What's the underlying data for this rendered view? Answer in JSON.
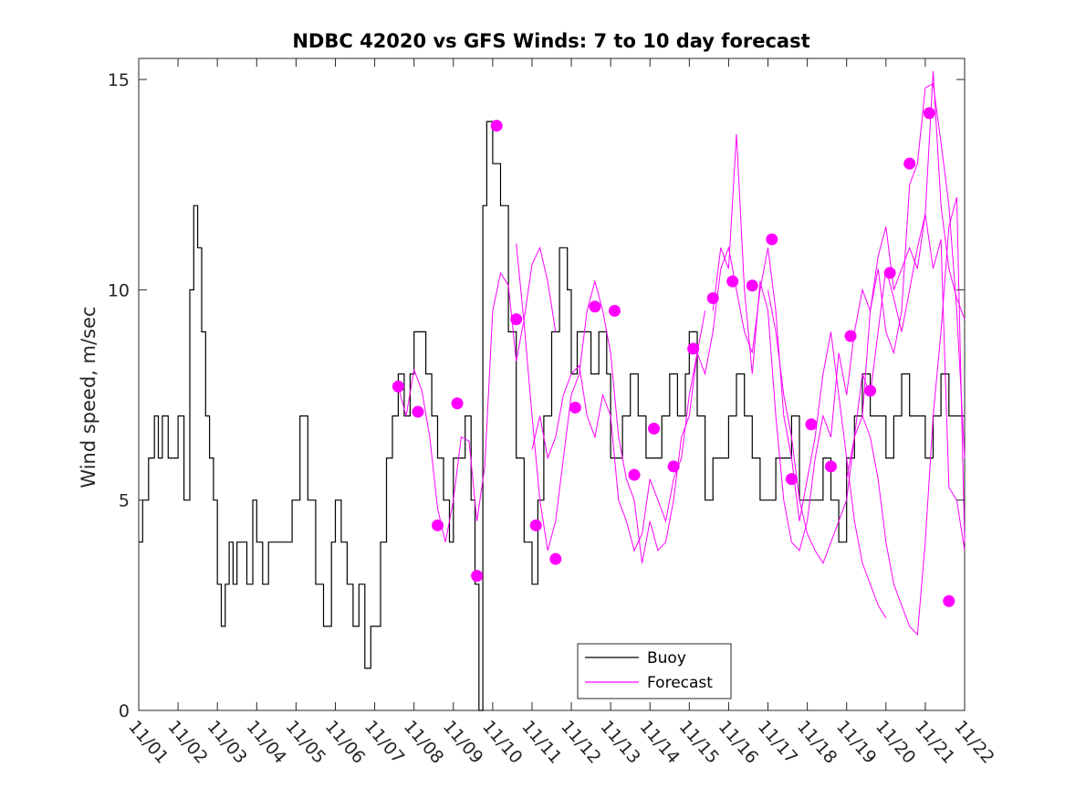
{
  "chart_data": {
    "type": "line",
    "title": "NDBC 42020 vs GFS Winds: 7 to 10 day forecast",
    "xlabel": "",
    "ylabel": "Wind speed, m/sec",
    "xlim": [
      0,
      21
    ],
    "ylim": [
      0,
      15.5
    ],
    "x_ticks": [
      "11/01",
      "11/02",
      "11/03",
      "11/04",
      "11/05",
      "11/06",
      "11/07",
      "11/08",
      "11/09",
      "11/10",
      "11/11",
      "11/12",
      "11/13",
      "11/14",
      "11/15",
      "11/16",
      "11/17",
      "11/18",
      "11/19",
      "11/20",
      "11/21",
      "11/22"
    ],
    "y_ticks": [
      0,
      5,
      10,
      15
    ],
    "legend": {
      "position": "bottom-center",
      "entries": [
        "Buoy",
        "Forecast"
      ]
    },
    "colors": {
      "buoy": "#000000",
      "forecast": "#ff00ff"
    },
    "series": [
      {
        "name": "Buoy",
        "style": "step",
        "x": [
          0.0,
          0.1,
          0.25,
          0.4,
          0.5,
          0.6,
          0.75,
          0.9,
          1.0,
          1.15,
          1.3,
          1.4,
          1.5,
          1.6,
          1.7,
          1.8,
          1.9,
          2.0,
          2.1,
          2.2,
          2.3,
          2.4,
          2.5,
          2.6,
          2.75,
          2.9,
          3.0,
          3.15,
          3.3,
          3.5,
          3.7,
          3.9,
          4.1,
          4.3,
          4.5,
          4.7,
          4.9,
          5.0,
          5.15,
          5.3,
          5.45,
          5.6,
          5.75,
          5.9,
          6.0,
          6.15,
          6.3,
          6.45,
          6.6,
          6.75,
          6.9,
          7.0,
          7.15,
          7.3,
          7.45,
          7.6,
          7.75,
          7.9,
          8.0,
          8.15,
          8.3,
          8.45,
          8.55,
          8.65,
          8.75,
          8.85,
          9.0,
          9.2,
          9.4,
          9.6,
          9.8,
          10.0,
          10.15,
          10.3,
          10.5,
          10.7,
          10.9,
          11.0,
          11.15,
          11.3,
          11.5,
          11.7,
          11.9,
          12.0,
          12.15,
          12.3,
          12.5,
          12.7,
          12.9,
          13.0,
          13.15,
          13.3,
          13.5,
          13.7,
          13.9,
          14.0,
          14.2,
          14.4,
          14.6,
          14.8,
          15.0,
          15.2,
          15.4,
          15.6,
          15.8,
          16.0,
          16.2,
          16.4,
          16.6,
          16.8,
          17.0,
          17.2,
          17.4,
          17.6,
          17.8,
          18.0,
          18.2,
          18.4,
          18.6,
          18.8,
          19.0,
          19.2,
          19.4,
          19.6,
          19.8,
          20.0,
          20.2,
          20.4,
          20.6,
          20.8
        ],
        "y": [
          4,
          5,
          6,
          7,
          6,
          7,
          6,
          6,
          7,
          5,
          10,
          12,
          11,
          9,
          7,
          6,
          5,
          3,
          2,
          3,
          4,
          3,
          4,
          4,
          3,
          5,
          4,
          3,
          4,
          4,
          4,
          5,
          7,
          5,
          3,
          2,
          4,
          5,
          4,
          3,
          2,
          3,
          1,
          2,
          2,
          4,
          6,
          7,
          8,
          7,
          8,
          9,
          9,
          8,
          7,
          6,
          5,
          4,
          6,
          6,
          7,
          5,
          3,
          0,
          12,
          14,
          13,
          12,
          9,
          6,
          4,
          3,
          5,
          7,
          9,
          11,
          10,
          8,
          9,
          9,
          8,
          9,
          8,
          6,
          6,
          7,
          8,
          7,
          6,
          6,
          6,
          7,
          8,
          7,
          8,
          9,
          7,
          5,
          6,
          6,
          7,
          8,
          7,
          6,
          5,
          5,
          6,
          6,
          7,
          5,
          5,
          5,
          6,
          5,
          4,
          6,
          7,
          8,
          7,
          7,
          6,
          7,
          8,
          7,
          7,
          6,
          7,
          8,
          7,
          7
        ]
      },
      {
        "name": "Forecast",
        "style": "lines",
        "lines": [
          {
            "x": [
              6.6,
              6.8,
              7.0,
              7.2,
              7.4,
              7.6,
              7.8,
              8.0,
              8.2,
              8.4,
              8.6,
              8.8,
              9.0,
              9.2,
              9.4,
              9.6,
              9.8,
              10.0,
              10.2,
              10.4,
              10.6
            ],
            "y": [
              7.7,
              7.0,
              8.1,
              7.6,
              6.5,
              4.8,
              4.0,
              5.0,
              6.5,
              6.4,
              4.5,
              5.8,
              9.5,
              10.4,
              10.1,
              8.3,
              9.3,
              10.6,
              11.0,
              10.2,
              9.0
            ]
          },
          {
            "x": [
              9.6,
              9.8,
              10.0,
              10.2,
              10.4,
              10.6,
              10.8,
              11.0,
              11.2,
              11.4,
              11.6,
              11.8,
              12.0,
              12.2,
              12.4,
              12.6,
              12.8,
              13.0,
              13.2,
              13.4,
              13.6
            ],
            "y": [
              11.1,
              9.2,
              7.0,
              5.0,
              3.8,
              4.5,
              6.0,
              7.5,
              8.0,
              9.5,
              10.2,
              9.5,
              8.5,
              6.5,
              5.5,
              5.0,
              3.5,
              4.5,
              3.8,
              4.0,
              5.0
            ]
          },
          {
            "x": [
              10.0,
              10.2,
              10.4,
              10.6,
              10.8,
              11.0,
              11.2,
              11.4,
              11.6,
              11.8,
              12.0,
              12.2,
              12.4,
              12.6,
              12.8,
              13.0,
              13.2,
              13.4,
              13.6,
              13.8,
              14.0,
              14.2,
              14.4
            ],
            "y": [
              6.2,
              7.0,
              6.0,
              6.5,
              7.5,
              8.0,
              8.2,
              7.0,
              6.5,
              7.5,
              7.0,
              5.0,
              4.5,
              3.8,
              4.2,
              5.5,
              5.0,
              4.5,
              5.5,
              6.0,
              7.5,
              8.5,
              9.5
            ]
          },
          {
            "x": [
              13.6,
              13.8,
              14.0,
              14.2,
              14.4,
              14.6,
              14.8,
              15.0,
              15.2,
              15.4,
              15.6,
              15.8,
              16.0,
              16.2,
              16.4,
              16.6,
              16.8,
              17.0,
              17.2,
              17.4,
              17.6,
              17.8,
              18.0,
              18.2,
              18.4,
              18.6,
              18.8,
              19.0
            ],
            "y": [
              5.0,
              6.5,
              7.0,
              8.5,
              8.0,
              9.0,
              10.5,
              11.0,
              10.0,
              9.0,
              8.5,
              10.0,
              11.0,
              9.5,
              7.0,
              6.0,
              4.5,
              5.5,
              6.5,
              8.0,
              9.0,
              7.5,
              6.0,
              4.5,
              3.5,
              3.0,
              2.5,
              2.2
            ]
          },
          {
            "x": [
              14.6,
              14.8,
              15.0,
              15.2,
              15.4,
              15.6,
              15.8,
              16.0,
              16.2,
              16.4,
              16.6,
              16.8,
              17.0,
              17.2,
              17.4,
              17.6,
              17.8,
              18.0,
              18.2,
              18.4,
              18.6,
              18.8,
              19.0,
              19.2,
              19.4,
              19.6,
              19.8,
              20.0,
              20.2,
              20.4,
              20.6,
              20.8,
              21.0
            ],
            "y": [
              9.5,
              11.0,
              10.5,
              13.7,
              10.0,
              8.0,
              10.2,
              9.5,
              7.0,
              5.0,
              4.0,
              3.8,
              4.5,
              6.0,
              7.0,
              6.5,
              8.5,
              7.5,
              9.0,
              10.0,
              9.5,
              10.8,
              11.5,
              10.0,
              10.5,
              11.0,
              10.5,
              11.8,
              15.2,
              12.0,
              10.5,
              9.8,
              9.3
            ]
          },
          {
            "x": [
              16.0,
              16.2,
              16.4,
              16.6,
              16.8,
              17.0,
              17.2,
              17.4,
              17.6,
              17.8,
              18.0,
              18.2,
              18.4,
              18.6,
              18.8,
              19.0,
              19.2,
              19.4,
              19.6,
              19.8,
              20.0,
              20.2,
              20.4,
              20.6,
              20.8,
              21.0
            ],
            "y": [
              10.0,
              9.0,
              7.5,
              6.5,
              5.0,
              4.2,
              3.8,
              3.5,
              4.0,
              4.5,
              5.0,
              6.5,
              7.0,
              9.5,
              10.5,
              9.0,
              8.5,
              9.5,
              12.5,
              13.0,
              14.8,
              14.9,
              13.5,
              12.0,
              9.5,
              6.0
            ]
          },
          {
            "x": [
              18.4,
              18.6,
              18.8,
              19.0,
              19.2,
              19.4,
              19.6,
              19.8,
              20.0,
              20.2,
              20.4,
              20.6,
              20.8,
              21.0
            ],
            "y": [
              7.0,
              6.5,
              5.5,
              4.0,
              3.0,
              2.5,
              2.0,
              1.8,
              4.0,
              7.0,
              9.0,
              11.5,
              12.2,
              4.0
            ]
          },
          {
            "x": [
              18.0,
              18.2,
              18.4,
              18.6,
              18.8,
              19.0,
              19.2,
              19.4,
              19.6,
              19.8,
              20.0,
              20.2,
              20.4,
              20.6,
              20.8,
              21.0
            ],
            "y": [
              5.5,
              6.5,
              8.0,
              7.5,
              9.0,
              10.5,
              9.8,
              9.0,
              10.0,
              11.0,
              11.8,
              10.5,
              11.2,
              5.3,
              5.0,
              3.8
            ]
          }
        ],
        "markers": {
          "x": [
            6.6,
            7.1,
            7.6,
            8.1,
            8.6,
            9.1,
            9.6,
            10.1,
            10.6,
            11.1,
            11.6,
            12.1,
            12.6,
            13.1,
            13.6,
            14.1,
            14.6,
            15.1,
            15.6,
            16.1,
            16.6,
            17.1,
            17.6,
            18.1,
            18.6,
            19.1,
            19.6,
            20.1,
            20.6
          ],
          "y": [
            7.7,
            7.1,
            4.4,
            7.3,
            3.2,
            13.9,
            9.3,
            4.4,
            3.6,
            7.2,
            9.6,
            9.5,
            5.6,
            6.7,
            5.8,
            8.6,
            9.8,
            10.2,
            10.1,
            11.2,
            5.5,
            6.8,
            5.8,
            8.9,
            7.6,
            10.4,
            13.0,
            14.2,
            2.6
          ]
        }
      }
    ]
  }
}
